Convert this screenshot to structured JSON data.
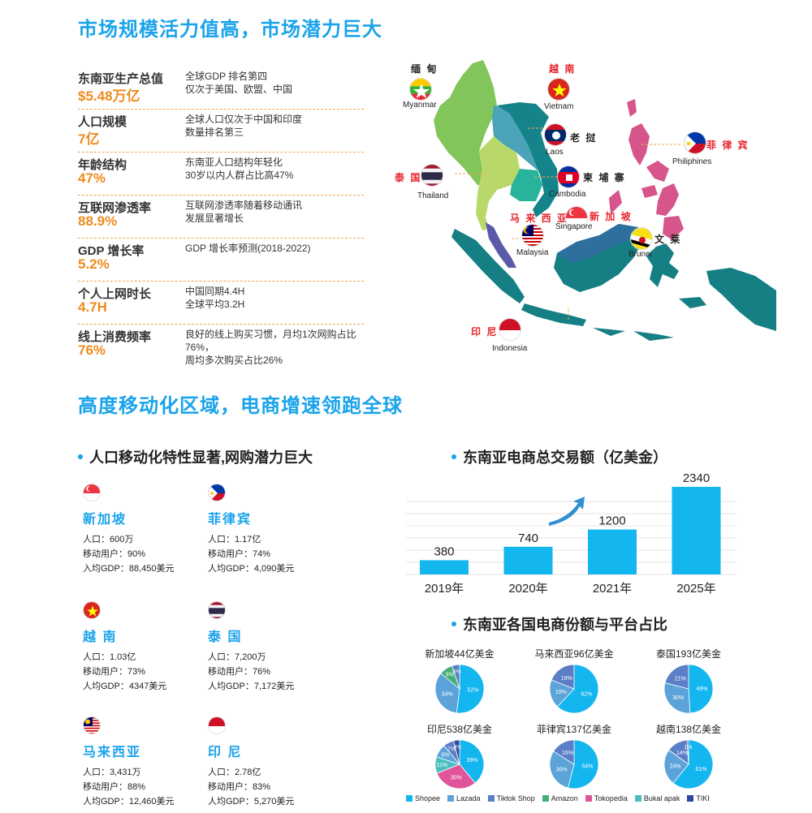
{
  "section1_title": "市场规模活力值高，市场潜力巨大",
  "section2_title": "高度移动化区域，电商增速领跑全球",
  "stats": [
    {
      "label": "东南亚生产总值",
      "value": "$5.48万亿",
      "desc1": "全球GDP 排名第四",
      "desc2": "仅次于美国、欧盟、中国"
    },
    {
      "label": "人口规模",
      "value": "7亿",
      "desc1": "全球人口仅次于中国和印度",
      "desc2": "数量排名第三"
    },
    {
      "label": "年龄结构",
      "value": "47%",
      "desc1": "东南亚人口结构年轻化",
      "desc2": "30岁以内人群占比高47%"
    },
    {
      "label": "互联网渗透率",
      "value": "88.9%",
      "desc1": "互联网渗透率随着移动通讯",
      "desc2": "发展显著增长"
    },
    {
      "label": "GDP 增长率",
      "value": "5.2%",
      "desc1": "GDP 增长率预测(2018-2022)",
      "desc2": ""
    },
    {
      "label": "个人上网时长",
      "value": "4.7H",
      "desc1": "中国同期4.4H",
      "desc2": "全球平均3.2H"
    },
    {
      "label": "线上消费频率",
      "value": "76%",
      "desc1": "良好的线上购买习惯，月均1次网购占比76%，",
      "desc2": "周均多次购买占比26%"
    }
  ],
  "map": {
    "countries": [
      {
        "cn": "缅 甸",
        "en": "Myanmar"
      },
      {
        "cn": "越 南",
        "en": "Vietnam"
      },
      {
        "cn": "老 挝",
        "en": "Laos"
      },
      {
        "cn": "菲 律 宾",
        "en": "Philiphines"
      },
      {
        "cn": "泰 国",
        "en": "Thailand"
      },
      {
        "cn": "柬 埔 寨",
        "en": "Cambodia"
      },
      {
        "cn": "马 来 西 亚",
        "en": "Malaysia"
      },
      {
        "cn": "新 加 坡",
        "en": "Singapore"
      },
      {
        "cn": "文 莱",
        "en": "Brunei"
      },
      {
        "cn": "印 尼",
        "en": "Indonesia"
      }
    ]
  },
  "mobile_title": "人口移动化特性显著,网购潜力巨大",
  "cards": [
    {
      "name": "新加坡",
      "l1": "人口：600万",
      "l2": "移动用户：90%",
      "l3": "入均GDP：88,450美元"
    },
    {
      "name": "菲律宾",
      "l1": "人口：1.17亿",
      "l2": "移动用户：74%",
      "l3": "人均GDP：4,090美元"
    },
    {
      "name": "越 南",
      "l1": "人口：1.03亿",
      "l2": "移动用户：73%",
      "l3": "人均GDP：4347美元"
    },
    {
      "name": "泰 国",
      "l1": "人口：7,200万",
      "l2": "移动用户：76%",
      "l3": "人均GDP：7,172美元"
    },
    {
      "name": "马来西亚",
      "l1": "人口：3,431万",
      "l2": "移动用户：88%",
      "l3": "人均GDP：12,460美元"
    },
    {
      "name": "印 尼",
      "l1": "人口：2.78亿",
      "l2": "移动用户：83%",
      "l3": "人均GDP：5,270美元"
    }
  ],
  "colors": {
    "accent": "#1aa3ea",
    "value_orange": "#ef8b1e",
    "bar": "#14b6f0"
  },
  "chart_data": [
    {
      "type": "bar",
      "title": "东南亚电商总交易额（亿美金）",
      "categories": [
        "2019年",
        "2020年",
        "2021年",
        "2025年"
      ],
      "values": [
        380,
        740,
        1200,
        2340
      ],
      "ylim": [
        0,
        2600
      ],
      "grid": true
    },
    {
      "type": "pie",
      "title": "东南亚各国电商份额与平台占比",
      "legend": [
        "Shopee",
        "Lazada",
        "Tiktok Shop",
        "Amazon",
        "Tokopedia",
        "Bukal apak",
        "TIKI"
      ],
      "legend_colors": [
        "#14b6f0",
        "#5ba3d9",
        "#5b7fc7",
        "#45b07a",
        "#e0559a",
        "#4bbfc0",
        "#2d4a9e"
      ],
      "pies": [
        {
          "title": "新加坡44亿美金",
          "slices": [
            {
              "name": "Shopee",
              "value": 52
            },
            {
              "name": "Lazada",
              "value": 34
            },
            {
              "name": "Amazon",
              "value": 9
            },
            {
              "name": "Tiktok Shop",
              "value": 5
            }
          ]
        },
        {
          "title": "马来西亚96亿美金",
          "slices": [
            {
              "name": "Shopee",
              "value": 62
            },
            {
              "name": "Lazada",
              "value": 19
            },
            {
              "name": "Tiktok Shop",
              "value": 19
            }
          ]
        },
        {
          "title": "泰国193亿美金",
          "slices": [
            {
              "name": "Shopee",
              "value": 49
            },
            {
              "name": "Lazada",
              "value": 30
            },
            {
              "name": "Tiktok Shop",
              "value": 21
            }
          ]
        },
        {
          "title": "印尼538亿美金",
          "slices": [
            {
              "name": "Shopee",
              "value": 39
            },
            {
              "name": "Tokopedia",
              "value": 30
            },
            {
              "name": "Bukal apak",
              "value": 11
            },
            {
              "name": "Lazada",
              "value": 9
            },
            {
              "name": "Tiktok Shop",
              "value": 7
            },
            {
              "name": "TIKI",
              "value": 4
            }
          ]
        },
        {
          "title": "菲律宾137亿美金",
          "slices": [
            {
              "name": "Shopee",
              "value": 54
            },
            {
              "name": "Lazada",
              "value": 30
            },
            {
              "name": "Tiktok Shop",
              "value": 16
            }
          ]
        },
        {
          "title": "越南138亿美金",
          "slices": [
            {
              "name": "Shopee",
              "value": 61
            },
            {
              "name": "Lazada",
              "value": 24
            },
            {
              "name": "Tiktok Shop",
              "value": 14
            },
            {
              "name": "TIKI",
              "value": 1
            }
          ]
        }
      ]
    }
  ]
}
